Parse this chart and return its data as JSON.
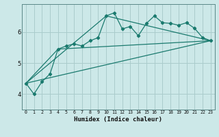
{
  "xlabel": "Humidex (Indice chaleur)",
  "bg_color": "#cce8e8",
  "grid_color": "#aacccc",
  "line_color": "#1a7a6e",
  "xlim": [
    -0.5,
    23.5
  ],
  "ylim": [
    3.5,
    6.9
  ],
  "yticks": [
    4,
    5,
    6
  ],
  "xticks": [
    0,
    1,
    2,
    3,
    4,
    5,
    6,
    7,
    8,
    9,
    10,
    11,
    12,
    13,
    14,
    15,
    16,
    17,
    18,
    19,
    20,
    21,
    22,
    23
  ],
  "series1_x": [
    0,
    1,
    2,
    3,
    4,
    5,
    6,
    7,
    8,
    9,
    10,
    11,
    12,
    13,
    14,
    15,
    16,
    17,
    18,
    19,
    20,
    21,
    22,
    23
  ],
  "series1_y": [
    4.35,
    4.0,
    4.4,
    4.65,
    5.45,
    5.55,
    5.62,
    5.55,
    5.72,
    5.82,
    6.52,
    6.62,
    6.1,
    6.18,
    5.88,
    6.28,
    6.52,
    6.3,
    6.28,
    6.22,
    6.3,
    6.12,
    5.82,
    5.72
  ],
  "series2_x": [
    0,
    23
  ],
  "series2_y": [
    4.35,
    5.72
  ],
  "series3_x": [
    0,
    4,
    23
  ],
  "series3_y": [
    4.35,
    5.45,
    5.72
  ],
  "series4_x": [
    0,
    10,
    23
  ],
  "series4_y": [
    4.35,
    6.52,
    5.72
  ]
}
